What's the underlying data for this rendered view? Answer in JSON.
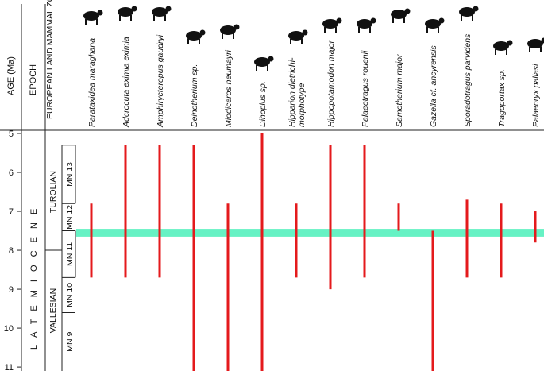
{
  "headers": {
    "age": "AGE (Ma)",
    "epoch": "EPOCH",
    "zones": "EUROPEAN LAND MAMMAL ZONES"
  },
  "epoch_label": "L A T E   M I O C E N E",
  "stages": [
    {
      "name": "TUROLIAN",
      "from": 5,
      "to": 8.0
    },
    {
      "name": "VALLESIAN",
      "from": 8.0,
      "to": 11.1
    }
  ],
  "mammal_zones": [
    {
      "name": "MN 13",
      "from": 5.3,
      "to": 6.8
    },
    {
      "name": "MN 12",
      "from": 6.8,
      "to": 7.5
    },
    {
      "name": "MN 11",
      "from": 7.5,
      "to": 8.7
    },
    {
      "name": "MN 10",
      "from": 8.7,
      "to": 9.6
    },
    {
      "name": "MN 9",
      "from": 9.6,
      "to": 11.1
    }
  ],
  "chart_data": {
    "type": "range",
    "ylabel": "AGE (Ma)",
    "ylim": [
      5,
      11.1
    ],
    "y_ticks": [
      5,
      6,
      7,
      8,
      9,
      10,
      11
    ],
    "grid": false,
    "highlight_band": {
      "from": 7.45,
      "to": 7.65,
      "color": "#66f2c4"
    },
    "bar_color": "#e41a1c",
    "taxa": [
      {
        "name": "Parataxidea maraghana",
        "from": 6.8,
        "to": 8.7,
        "icon": "badger-silhouette"
      },
      {
        "name": "Adcrocuta eximia eximia",
        "from": 5.3,
        "to": 8.7,
        "icon": "hyena-silhouette"
      },
      {
        "name": "Amphirycteropus gaudryi",
        "from": 5.3,
        "to": 8.7,
        "icon": "aardvark-silhouette"
      },
      {
        "name": "Deinotherium sp.",
        "from": 5.3,
        "to": 11.1,
        "icon": "deinothere-silhouette"
      },
      {
        "name": "Miodiceros neumayri",
        "from": 6.8,
        "to": 11.1,
        "icon": "rhinoceros-silhouette"
      },
      {
        "name": "Dihoplus sp.",
        "from": 5.0,
        "to": 11.1,
        "icon": "rhinoceros-silhouette"
      },
      {
        "name": "Hipparion dietrichi-morphotype",
        "from": 6.8,
        "to": 8.7,
        "icon": "horse-silhouette"
      },
      {
        "name": "Hippopotamodon major",
        "from": 5.3,
        "to": 9.0,
        "icon": "suid-silhouette"
      },
      {
        "name": "Palaeotragus rouenii",
        "from": 5.3,
        "to": 8.7,
        "icon": "giraffid-silhouette"
      },
      {
        "name": "Samotherium major",
        "from": 6.8,
        "to": 7.5,
        "icon": "giraffid-silhouette"
      },
      {
        "name": "Gazella cf. ancyrensis",
        "from": 7.5,
        "to": 11.1,
        "icon": "gazelle-silhouette"
      },
      {
        "name": "Sporadotragus parvidens",
        "from": 6.7,
        "to": 8.7,
        "icon": "bovid-silhouette"
      },
      {
        "name": "Tragoportax sp.",
        "from": 6.8,
        "to": 8.7,
        "icon": "bovid-silhouette"
      },
      {
        "name": "Palaeoryx pallasi",
        "from": 7.0,
        "to": 7.8,
        "icon": "oryx-silhouette"
      }
    ]
  }
}
